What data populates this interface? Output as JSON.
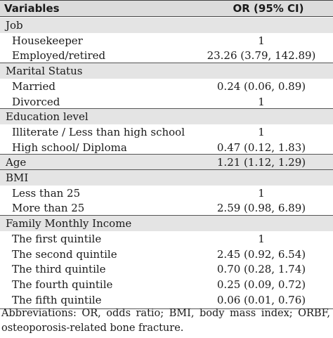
{
  "header": {
    "col_variables": "Variables",
    "col_or": "OR (95% CI)"
  },
  "rows": [
    {
      "type": "group",
      "label": "Job",
      "value": ""
    },
    {
      "type": "sub",
      "label": "Housekeeper",
      "value": "1"
    },
    {
      "type": "sub",
      "label": "Employed/retired",
      "value": "23.26 (3.79, 142.89)"
    },
    {
      "type": "group",
      "label": "Marital Status",
      "value": ""
    },
    {
      "type": "sub",
      "label": "Married",
      "value": "0.24 (0.06, 0.89)"
    },
    {
      "type": "sub",
      "label": "Divorced",
      "value": "1"
    },
    {
      "type": "group",
      "label": "Education level",
      "value": ""
    },
    {
      "type": "sub",
      "label": "Illiterate / Less than high school",
      "value": "1"
    },
    {
      "type": "sub",
      "label": "High school/ Diploma",
      "value": "0.47 (0.12, 1.83)"
    },
    {
      "type": "group",
      "label": "Age",
      "value": "1.21 (1.12, 1.29)"
    },
    {
      "type": "group",
      "label": "BMI",
      "value": ""
    },
    {
      "type": "sub",
      "label": "Less than 25",
      "value": "1"
    },
    {
      "type": "sub",
      "label": "More than 25",
      "value": "2.59 (0.98, 6.89)"
    },
    {
      "type": "group",
      "label": "Family Monthly Income",
      "value": ""
    },
    {
      "type": "sub",
      "label": "The first quintile",
      "value": "1"
    },
    {
      "type": "sub",
      "label": "The second quintile",
      "value": "2.45 (0.92, 6.54)"
    },
    {
      "type": "sub",
      "label": "The third quintile",
      "value": "0.70 (0.28, 1.74)"
    },
    {
      "type": "sub",
      "label": "The fourth quintile",
      "value": "0.25 (0.09, 0.72)"
    },
    {
      "type": "sub",
      "label": "The fifth quintile",
      "value": "0.06 (0.01, 0.76)"
    }
  ],
  "footer": "Abbreviations: OR, odds ratio; BMI, body mass index; ORBF, osteoporosis-related bone fracture."
}
